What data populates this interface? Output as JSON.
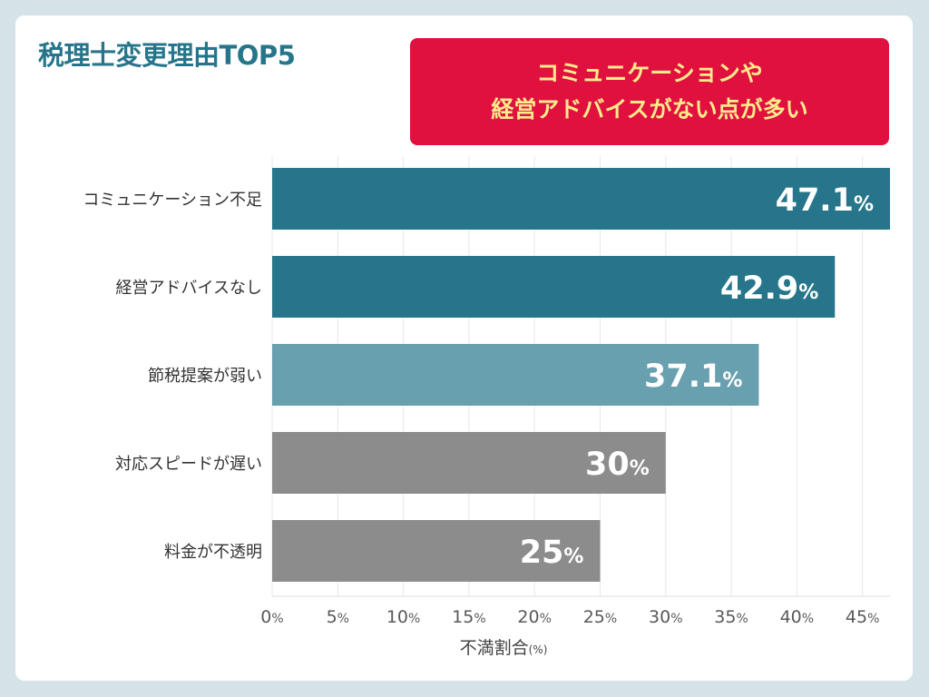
{
  "title": "税理士変更理由TOP5",
  "callout": {
    "line1": "コミュニケーションや",
    "line2": "経営アドバイスがない点が多い"
  },
  "colors": {
    "background": "#d5e3e8",
    "title": "#27758a",
    "callout_bg": "#e0103f",
    "callout_text": "#ffeb8c"
  },
  "chart_data": {
    "type": "bar",
    "orientation": "horizontal",
    "categories": [
      "コミュニケーション不足",
      "経営アドバイスなし",
      "節税提案が弱い",
      "対応スピードが遅い",
      "料金が不透明"
    ],
    "values": [
      47.1,
      42.9,
      37.1,
      30,
      25
    ],
    "data_labels": [
      "47.1",
      "42.9",
      "37.1",
      "30",
      "25"
    ],
    "label_unit": "%",
    "bar_colors": [
      "#27758a",
      "#27758a",
      "#68a0b0",
      "#8c8c8c",
      "#8c8c8c"
    ],
    "xlabel": "不満割合",
    "xlabel_unit": "(%)",
    "xlim": [
      0,
      47.1
    ],
    "xticks": [
      0,
      5,
      10,
      15,
      20,
      25,
      30,
      35,
      40,
      45
    ],
    "tick_unit": "%",
    "grid": true
  }
}
